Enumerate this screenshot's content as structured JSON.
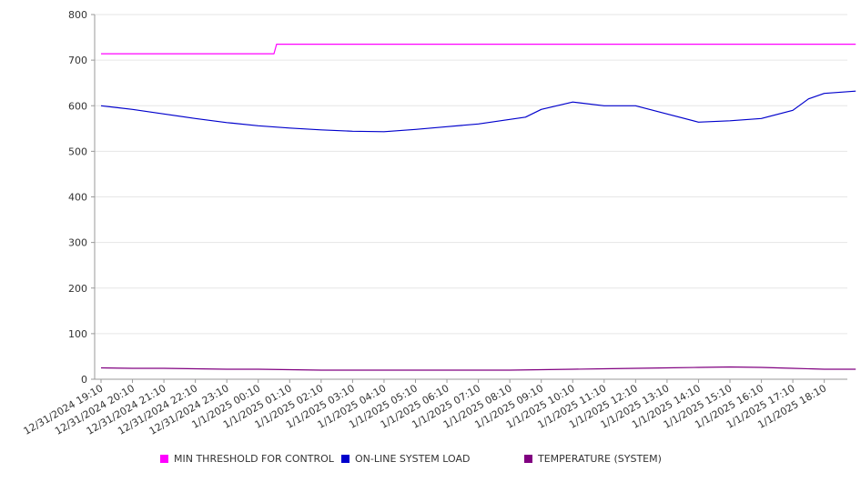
{
  "chart_data": {
    "type": "line",
    "title": "",
    "xlabel": "",
    "ylabel": "",
    "ylim": [
      0,
      800
    ],
    "yticks": [
      0,
      100,
      200,
      300,
      400,
      500,
      600,
      700,
      800
    ],
    "grid": true,
    "legend_position": "bottom",
    "xticks": [
      "12/31/2024 19:10",
      "12/31/2024 20:10",
      "12/31/2024 21:10",
      "12/31/2024 22:10",
      "12/31/2024 23:10",
      "1/1/2025 00:10",
      "1/1/2025 01:10",
      "1/1/2025 02:10",
      "1/1/2025 03:10",
      "1/1/2025 04:10",
      "1/1/2025 05:10",
      "1/1/2025 06:10",
      "1/1/2025 07:10",
      "1/1/2025 08:10",
      "1/1/2025 09:10",
      "1/1/2025 10:10",
      "1/1/2025 11:10",
      "1/1/2025 12:10",
      "1/1/2025 13:10",
      "1/1/2025 14:10",
      "1/1/2025 15:10",
      "1/1/2025 16:10",
      "1/1/2025 17:10",
      "1/1/2025 18:10"
    ],
    "series": [
      {
        "name": "MIN THRESHOLD FOR CONTROL",
        "color": "#ff00ff",
        "points": [
          [
            "12/31/2024 19:10",
            714
          ],
          [
            "12/31/2024 20:10",
            714
          ],
          [
            "12/31/2024 21:10",
            714
          ],
          [
            "12/31/2024 22:10",
            714
          ],
          [
            "12/31/2024 23:10",
            714
          ],
          [
            "1/1/2025 00:40",
            714
          ],
          [
            "1/1/2025 00:45",
            735
          ],
          [
            "1/1/2025 01:10",
            735
          ],
          [
            "1/1/2025 06:10",
            735
          ],
          [
            "1/1/2025 12:10",
            735
          ],
          [
            "1/1/2025 18:10",
            735
          ],
          [
            "1/1/2025 19:10",
            735
          ]
        ]
      },
      {
        "name": "ON-LINE SYSTEM LOAD",
        "color": "#0000cc",
        "points": [
          [
            "12/31/2024 19:10",
            600
          ],
          [
            "12/31/2024 20:10",
            592
          ],
          [
            "12/31/2024 21:10",
            582
          ],
          [
            "12/31/2024 22:10",
            572
          ],
          [
            "12/31/2024 23:10",
            563
          ],
          [
            "1/1/2025 00:10",
            556
          ],
          [
            "1/1/2025 01:10",
            551
          ],
          [
            "1/1/2025 02:10",
            547
          ],
          [
            "1/1/2025 03:10",
            544
          ],
          [
            "1/1/2025 04:10",
            543
          ],
          [
            "1/1/2025 05:10",
            548
          ],
          [
            "1/1/2025 06:10",
            554
          ],
          [
            "1/1/2025 07:10",
            560
          ],
          [
            "1/1/2025 08:10",
            570
          ],
          [
            "1/1/2025 08:40",
            575
          ],
          [
            "1/1/2025 09:10",
            592
          ],
          [
            "1/1/2025 10:10",
            608
          ],
          [
            "1/1/2025 11:10",
            600
          ],
          [
            "1/1/2025 12:10",
            600
          ],
          [
            "1/1/2025 13:10",
            582
          ],
          [
            "1/1/2025 14:10",
            564
          ],
          [
            "1/1/2025 15:10",
            567
          ],
          [
            "1/1/2025 16:10",
            572
          ],
          [
            "1/1/2025 17:10",
            590
          ],
          [
            "1/1/2025 17:40",
            615
          ],
          [
            "1/1/2025 18:10",
            627
          ],
          [
            "1/1/2025 19:10",
            632
          ]
        ]
      },
      {
        "name": "TEMPERATURE (SYSTEM)",
        "color": "#800080",
        "points": [
          [
            "12/31/2024 19:10",
            25
          ],
          [
            "12/31/2024 20:10",
            24
          ],
          [
            "12/31/2024 21:10",
            24
          ],
          [
            "12/31/2024 22:10",
            23
          ],
          [
            "12/31/2024 23:10",
            22
          ],
          [
            "1/1/2025 00:10",
            22
          ],
          [
            "1/1/2025 01:10",
            21
          ],
          [
            "1/1/2025 02:10",
            20
          ],
          [
            "1/1/2025 04:10",
            20
          ],
          [
            "1/1/2025 06:10",
            20
          ],
          [
            "1/1/2025 08:10",
            20
          ],
          [
            "1/1/2025 09:10",
            21
          ],
          [
            "1/1/2025 10:10",
            22
          ],
          [
            "1/1/2025 11:10",
            23
          ],
          [
            "1/1/2025 12:10",
            24
          ],
          [
            "1/1/2025 13:10",
            25
          ],
          [
            "1/1/2025 14:10",
            26
          ],
          [
            "1/1/2025 15:10",
            27
          ],
          [
            "1/1/2025 16:10",
            26
          ],
          [
            "1/1/2025 17:10",
            24
          ],
          [
            "1/1/2025 18:10",
            22
          ],
          [
            "1/1/2025 19:10",
            22
          ]
        ]
      }
    ]
  }
}
